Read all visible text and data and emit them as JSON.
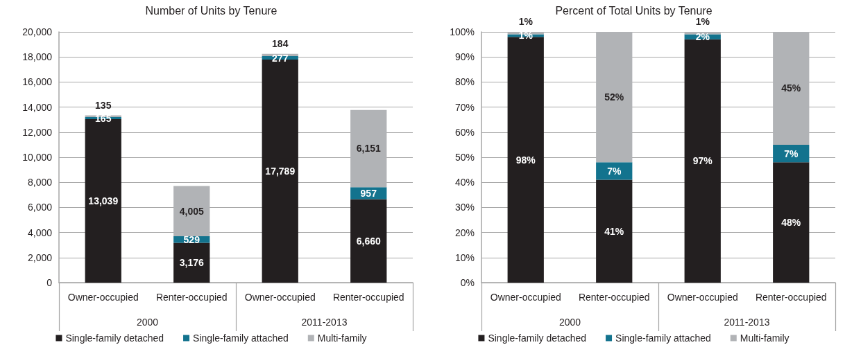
{
  "chart_data": [
    {
      "type": "bar",
      "title": "Number of Units by Tenure",
      "categories": [
        "Owner-occupied",
        "Renter-occupied",
        "Owner-occupied",
        "Renter-occupied"
      ],
      "stacked": true,
      "series": [
        {
          "name": "Single-family detached",
          "color": "#231f20",
          "values": [
            13039,
            3176,
            17789,
            6660
          ],
          "value_labels": [
            "13,039",
            "3,176",
            "17,789",
            "6,660"
          ]
        },
        {
          "name": "Single-family attached",
          "color": "#13738e",
          "values": [
            165,
            529,
            277,
            957
          ],
          "value_labels": [
            "165",
            "529",
            "277",
            "957"
          ]
        },
        {
          "name": "Multi-family",
          "color": "#b1b3b6",
          "values": [
            135,
            4005,
            184,
            6151
          ],
          "value_labels": [
            "135",
            "4,005",
            "184",
            "6,151"
          ]
        }
      ],
      "ylim": [
        0,
        20000
      ],
      "yticks": [
        0,
        {
          "value": 2000,
          "label": "2,000"
        },
        {
          "value": 4000,
          "label": "4,000"
        },
        {
          "value": 6000,
          "label": "6,000"
        },
        {
          "value": 8000,
          "label": "8,000"
        },
        {
          "value": 10000,
          "label": "10,000"
        },
        {
          "value": 12000,
          "label": "12,000"
        },
        {
          "value": 14000,
          "label": "14,000"
        },
        {
          "value": 16000,
          "label": "16,000"
        },
        {
          "value": 18000,
          "label": "18,000"
        },
        {
          "value": 20000,
          "label": "20,000"
        }
      ],
      "grid": "y",
      "legend": "bottom",
      "annotations": [
        "2000",
        "2011-2013"
      ]
    },
    {
      "type": "bar",
      "title": "Percent of Total Units by Tenure",
      "categories": [
        "Owner-occupied",
        "Renter-occupied",
        "Owner-occupied",
        "Renter-occupied"
      ],
      "stacked": true,
      "series": [
        {
          "name": "Single-family detached",
          "color": "#231f20",
          "values": [
            98,
            41,
            97,
            48
          ],
          "value_labels": [
            "98%",
            "41%",
            "97%",
            "48%"
          ]
        },
        {
          "name": "Single-family attached",
          "color": "#13738e",
          "values": [
            1,
            7,
            2,
            7
          ],
          "value_labels": [
            "1%",
            "7%",
            "2%",
            "7%"
          ]
        },
        {
          "name": "Multi-family",
          "color": "#b1b3b6",
          "values": [
            1,
            52,
            1,
            45
          ],
          "value_labels": [
            "1%",
            "52%",
            "1%",
            "45%"
          ]
        }
      ],
      "ylim": [
        0,
        100
      ],
      "yticks": [
        {
          "value": 0,
          "label": "0%"
        },
        {
          "value": 10,
          "label": "10%"
        },
        {
          "value": 20,
          "label": "20%"
        },
        {
          "value": 30,
          "label": "30%"
        },
        {
          "value": 40,
          "label": "40%"
        },
        {
          "value": 50,
          "label": "50%"
        },
        {
          "value": 60,
          "label": "60%"
        },
        {
          "value": 70,
          "label": "70%"
        },
        {
          "value": 80,
          "label": "80%"
        },
        {
          "value": 90,
          "label": "90%"
        },
        {
          "value": 100,
          "label": "100%"
        }
      ],
      "grid": "y",
      "legend": "bottom",
      "annotations": [
        "2000",
        "2011-2013"
      ]
    }
  ]
}
